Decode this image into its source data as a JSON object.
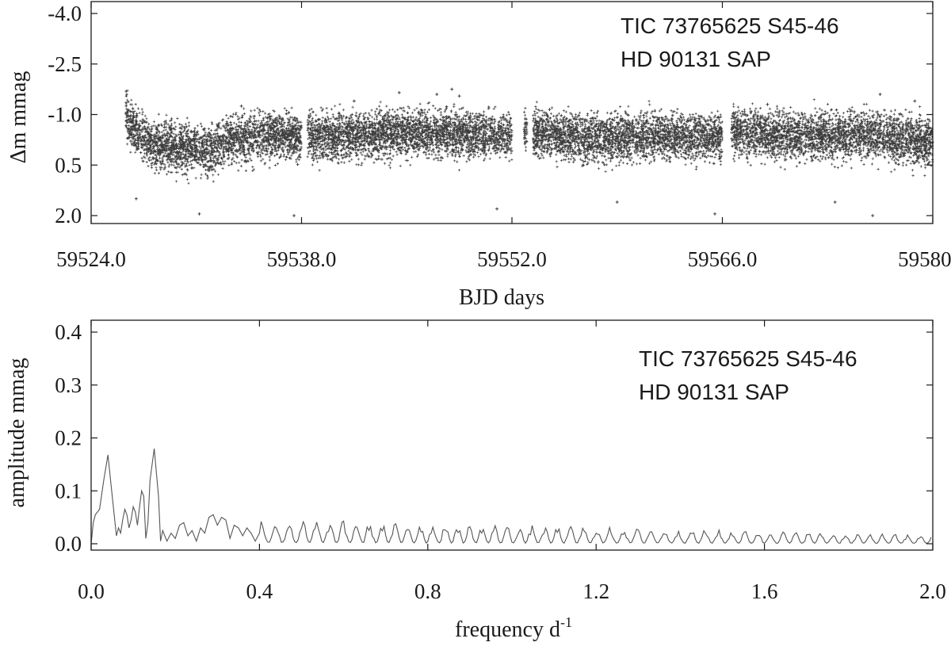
{
  "chart_data": [
    {
      "type": "scatter",
      "title": "",
      "annotation": [
        "TIC 73765625 S45-46",
        "HD 90131 SAP"
      ],
      "xlabel": "BJD days",
      "ylabel": "Δm mmag",
      "xlim": [
        59524.0,
        59580.0
      ],
      "ylim": [
        2.2,
        -4.5
      ],
      "ylim_note": "inverted magnitude axis: -4.0 at top, 2.0 at bottom",
      "xticks": [
        59524.0,
        59538.0,
        59552.0,
        59566.0,
        59580.0
      ],
      "xtick_labels": [
        "59524.0",
        "59538.0",
        "59552.0",
        "59566.0",
        "59580.0"
      ],
      "yticks": [
        -4.0,
        -2.5,
        -1.0,
        0.5,
        2.0
      ],
      "ytick_labels": [
        "-4.0",
        "-2.5",
        "-1.0",
        "0.5",
        "2.0"
      ],
      "marker": "plus",
      "color": "#1a1a1a",
      "segments": [
        {
          "x": [
            59526.3,
            59538.0
          ]
        },
        {
          "x": [
            59538.4,
            59552.0
          ]
        },
        {
          "x": [
            59552.8,
            59553.0
          ]
        },
        {
          "x": [
            59553.4,
            59566.0
          ]
        },
        {
          "x": [
            59566.6,
            59580.0
          ]
        }
      ],
      "trend": {
        "x": [
          59526.3,
          59526.6,
          59527.0,
          59528.0,
          59530.0,
          59532.0,
          59533.0,
          59534.0,
          59536.0,
          59538.0,
          59538.4,
          59542.0,
          59546.0,
          59548.0,
          59552.0,
          59552.8,
          59553.0,
          59553.4,
          59556.0,
          59558.0,
          59560.0,
          59562.0,
          59566.0,
          59566.6,
          59570.0,
          59574.0,
          59576.0,
          59580.0
        ],
        "y": [
          -1.0,
          -0.75,
          -0.5,
          -0.15,
          0.0,
          0.05,
          -0.2,
          -0.3,
          -0.35,
          -0.3,
          -0.35,
          -0.35,
          -0.45,
          -0.4,
          -0.4,
          -0.5,
          -0.5,
          -0.45,
          -0.3,
          -0.25,
          -0.35,
          -0.35,
          -0.3,
          -0.5,
          -0.35,
          -0.35,
          -0.35,
          -0.15
        ]
      },
      "scatter_sigma": 0.35,
      "outliers": [
        {
          "x": 59531.2,
          "y": 1.95
        },
        {
          "x": 59534.0,
          "y": -1.25
        },
        {
          "x": 59537.5,
          "y": 2.0
        },
        {
          "x": 59544.5,
          "y": -1.65
        },
        {
          "x": 59547.0,
          "y": -1.6
        },
        {
          "x": 59548.5,
          "y": -1.55
        },
        {
          "x": 59548.0,
          "y": -1.75
        },
        {
          "x": 59551.0,
          "y": 1.8
        },
        {
          "x": 59554.5,
          "y": -1.15
        },
        {
          "x": 59559.0,
          "y": 1.6
        },
        {
          "x": 59565.5,
          "y": 1.95
        },
        {
          "x": 59569.0,
          "y": -1.3
        },
        {
          "x": 59576.5,
          "y": -1.6
        },
        {
          "x": 59578.8,
          "y": -1.4
        },
        {
          "x": 59576.0,
          "y": 2.0
        },
        {
          "x": 59573.5,
          "y": 1.6
        },
        {
          "x": 59527.0,
          "y": 1.5
        },
        {
          "x": 59541.5,
          "y": -1.4
        }
      ]
    },
    {
      "type": "line",
      "title": "",
      "annotation": [
        "TIC 73765625 S45-46",
        "HD 90131 SAP"
      ],
      "xlabel": "frequency d",
      "xlabel_superscript": "-1",
      "ylabel": "amplitude mmag",
      "xlim": [
        0.0,
        2.0
      ],
      "ylim": [
        -0.02,
        0.42
      ],
      "xticks": [
        0.0,
        0.4,
        0.8,
        1.2,
        1.6,
        2.0
      ],
      "xtick_labels": [
        "0.0",
        "0.4",
        "0.8",
        "1.2",
        "1.6",
        "2.0"
      ],
      "yticks": [
        0.0,
        0.1,
        0.2,
        0.3,
        0.4
      ],
      "ytick_labels": [
        "0.0",
        "0.1",
        "0.2",
        "0.3",
        "0.4"
      ],
      "color": "#555555",
      "series": [
        {
          "x": [
            0.0,
            0.005,
            0.01,
            0.02,
            0.03,
            0.04,
            0.05,
            0.06,
            0.065,
            0.07,
            0.075,
            0.08,
            0.085,
            0.09,
            0.095,
            0.1,
            0.105,
            0.11,
            0.115,
            0.12,
            0.125,
            0.13,
            0.135,
            0.14,
            0.15,
            0.16,
            0.165,
            0.17,
            0.175,
            0.18,
            0.19,
            0.2,
            0.21,
            0.22,
            0.23,
            0.24,
            0.25,
            0.26,
            0.27,
            0.28,
            0.29,
            0.3,
            0.31,
            0.32,
            0.33,
            0.34,
            0.35,
            0.36,
            0.37,
            0.38,
            0.39,
            0.4
          ],
          "y": [
            0.0,
            0.04,
            0.055,
            0.065,
            0.12,
            0.168,
            0.09,
            0.015,
            0.03,
            0.02,
            0.045,
            0.065,
            0.055,
            0.03,
            0.045,
            0.07,
            0.06,
            0.035,
            0.07,
            0.1,
            0.09,
            0.01,
            0.04,
            0.12,
            0.18,
            0.09,
            0.005,
            0.025,
            0.015,
            0.005,
            0.02,
            0.01,
            0.035,
            0.04,
            0.015,
            0.025,
            0.005,
            0.03,
            0.02,
            0.05,
            0.055,
            0.035,
            0.05,
            0.045,
            0.01,
            0.035,
            0.03,
            0.015,
            0.03,
            0.02,
            0.005,
            0.02
          ]
        }
      ],
      "tail": {
        "x_range": [
          0.4,
          2.0
        ],
        "envelope_start": 0.035,
        "envelope_end": 0.012,
        "ripple_period": 0.04
      }
    }
  ]
}
